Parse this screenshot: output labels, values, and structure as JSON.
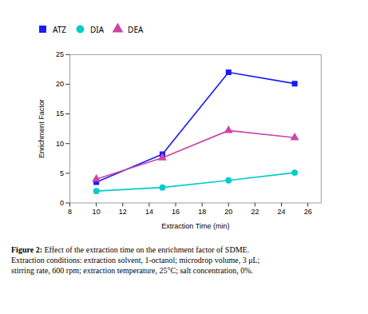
{
  "chart_data": {
    "type": "line",
    "x": [
      10,
      15,
      20,
      25
    ],
    "series": [
      {
        "name": "ATZ",
        "color": "#1a1aff",
        "marker": "square",
        "values": [
          3.5,
          8.2,
          22.0,
          20.1
        ]
      },
      {
        "name": "DIA",
        "color": "#00cccc",
        "marker": "circle",
        "values": [
          2.0,
          2.6,
          3.8,
          5.1
        ]
      },
      {
        "name": "DEA",
        "color": "#cc44aa",
        "marker": "triangle",
        "values": [
          4.0,
          7.6,
          12.2,
          11.0
        ]
      }
    ],
    "xlabel": "Extraction Time (min)",
    "ylabel": "Enrichment Factor",
    "xlim": [
      8,
      27
    ],
    "ylim": [
      0,
      25
    ],
    "xticks": [
      8,
      10,
      12,
      14,
      16,
      18,
      20,
      22,
      24,
      26
    ],
    "yticks": [
      0,
      5,
      10,
      15,
      20,
      25
    ],
    "legend": "top",
    "caption": "Figure 2: Effect of the extraction time on the enrichment factor of SDME.\nExtraction conditions: extraction solvent, 1-octanol; microdrop volume, 3 μL;\nstirring rate, 600 rpm; extraction temperature, 25°C; salt concentration, 0%."
  }
}
